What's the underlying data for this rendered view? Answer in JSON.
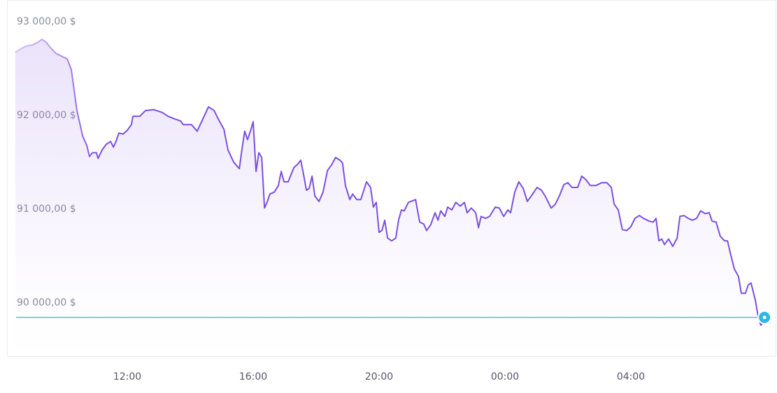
{
  "chart_data": {
    "type": "line",
    "x": [
      8.44,
      8.62,
      8.8,
      8.98,
      9.16,
      9.29,
      9.42,
      9.56,
      9.73,
      9.91,
      10.09,
      10.22,
      10.4,
      10.58,
      10.71,
      10.8,
      10.89,
      11.02,
      11.07,
      11.2,
      11.33,
      11.47,
      11.56,
      11.64,
      11.73,
      11.87,
      12.0,
      12.13,
      12.18,
      12.4,
      12.58,
      12.84,
      13.11,
      13.29,
      13.51,
      13.69,
      13.78,
      14.04,
      14.22,
      14.4,
      14.58,
      14.76,
      14.89,
      15.07,
      15.2,
      15.38,
      15.56,
      15.64,
      15.73,
      15.82,
      15.91,
      16.0,
      16.09,
      16.18,
      16.27,
      16.36,
      16.44,
      16.53,
      16.67,
      16.8,
      16.89,
      16.98,
      17.11,
      17.29,
      17.42,
      17.51,
      17.6,
      17.69,
      17.78,
      17.87,
      17.96,
      18.09,
      18.22,
      18.36,
      18.49,
      18.62,
      18.76,
      18.84,
      18.93,
      19.07,
      19.16,
      19.29,
      19.42,
      19.6,
      19.73,
      19.82,
      19.91,
      20.0,
      20.09,
      20.18,
      20.27,
      20.4,
      20.53,
      20.62,
      20.71,
      20.8,
      20.93,
      21.16,
      21.29,
      21.42,
      21.51,
      21.64,
      21.78,
      21.87,
      21.96,
      22.09,
      22.18,
      22.31,
      22.44,
      22.58,
      22.71,
      22.8,
      22.93,
      23.07,
      23.16,
      23.24,
      23.38,
      23.51,
      23.69,
      23.82,
      23.96,
      24.09,
      24.18,
      24.31,
      24.44,
      24.58,
      24.71,
      24.84,
      25.02,
      25.16,
      25.29,
      25.47,
      25.6,
      25.73,
      25.87,
      26.0,
      26.13,
      26.31,
      26.44,
      26.58,
      26.71,
      26.89,
      27.07,
      27.24,
      27.38,
      27.47,
      27.6,
      27.73,
      27.87,
      28.0,
      28.13,
      28.27,
      28.4,
      28.58,
      28.71,
      28.8,
      28.89,
      28.98,
      29.07,
      29.2,
      29.33,
      29.47,
      29.56,
      29.69,
      29.82,
      29.96,
      30.09,
      30.22,
      30.36,
      30.49,
      30.58,
      30.71,
      30.84,
      30.98,
      31.07,
      31.16,
      31.29,
      31.42,
      31.51,
      31.64,
      31.73,
      31.82,
      31.96,
      32.04,
      32.13,
      32.18
    ],
    "values": [
      92670,
      92710,
      92740,
      92750,
      92780,
      92810,
      92780,
      92720,
      92660,
      92630,
      92600,
      92490,
      92050,
      91780,
      91680,
      91560,
      91600,
      91600,
      91540,
      91630,
      91690,
      91720,
      91660,
      91720,
      91810,
      91800,
      91840,
      91900,
      91990,
      91990,
      92050,
      92060,
      92030,
      91990,
      91960,
      91940,
      91900,
      91900,
      91830,
      91960,
      92090,
      92050,
      91960,
      91850,
      91630,
      91500,
      91430,
      91630,
      91830,
      91740,
      91830,
      91930,
      91400,
      91600,
      91550,
      91010,
      91070,
      91160,
      91180,
      91250,
      91400,
      91290,
      91290,
      91440,
      91480,
      91520,
      91370,
      91200,
      91220,
      91350,
      91140,
      91080,
      91180,
      91410,
      91470,
      91550,
      91520,
      91490,
      91250,
      91100,
      91160,
      91100,
      91100,
      91290,
      91230,
      91020,
      91070,
      90750,
      90770,
      90880,
      90690,
      90660,
      90690,
      90880,
      90990,
      90980,
      91070,
      91100,
      90860,
      90840,
      90770,
      90830,
      90960,
      90880,
      90980,
      90920,
      91020,
      90990,
      91070,
      91030,
      91070,
      90960,
      91010,
      90960,
      90800,
      90920,
      90900,
      90920,
      91020,
      91010,
      90920,
      90990,
      90960,
      91180,
      91290,
      91220,
      91080,
      91140,
      91230,
      91200,
      91130,
      91010,
      91050,
      91140,
      91260,
      91280,
      91230,
      91230,
      91350,
      91310,
      91250,
      91250,
      91280,
      91280,
      91230,
      91050,
      90990,
      90780,
      90770,
      90810,
      90900,
      90930,
      90900,
      90870,
      90860,
      90900,
      90660,
      90680,
      90620,
      90680,
      90600,
      90690,
      90920,
      90930,
      90900,
      90880,
      90900,
      90980,
      90950,
      90960,
      90870,
      90860,
      90710,
      90660,
      90660,
      90530,
      90360,
      90280,
      90100,
      90100,
      90190,
      90210,
      90020,
      89860,
      89760,
      89780
    ],
    "color": "#7b4fe0",
    "last_price": 89843,
    "last_price_color": "#2ab8e6",
    "xlim": [
      8.2,
      32.3
    ],
    "xticks": [
      {
        "value": 12,
        "label": "12:00"
      },
      {
        "value": 16,
        "label": "16:00"
      },
      {
        "value": 20,
        "label": "20:00"
      },
      {
        "value": 24,
        "label": "00:00"
      },
      {
        "value": 28,
        "label": "04:00"
      }
    ],
    "ylim": [
      89430,
      93230
    ],
    "yticks": [
      {
        "value": 90000,
        "label": "90 000,00 $"
      },
      {
        "value": 91000,
        "label": "91 000,00 $"
      },
      {
        "value": 92000,
        "label": "92 000,00 $"
      },
      {
        "value": 93000,
        "label": "93 000,00 $"
      }
    ],
    "grid": false
  }
}
